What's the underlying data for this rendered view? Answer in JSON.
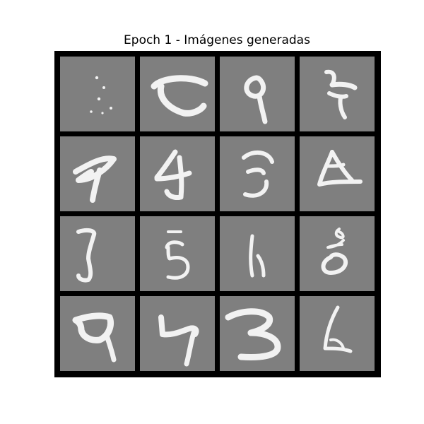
{
  "figure": {
    "title": "Epoch 1 - Imágenes generadas"
  },
  "grid": {
    "rows": 4,
    "cols": 4,
    "cells": [
      {
        "row": 0,
        "col": 0,
        "glyph": "noise-dots"
      },
      {
        "row": 0,
        "col": 1,
        "glyph": "c-stroke"
      },
      {
        "row": 0,
        "col": 2,
        "glyph": "nine-loop"
      },
      {
        "row": 0,
        "col": 3,
        "glyph": "z-stroke"
      },
      {
        "row": 1,
        "col": 0,
        "glyph": "nine-angular"
      },
      {
        "row": 1,
        "col": 1,
        "glyph": "four-stroke"
      },
      {
        "row": 1,
        "col": 2,
        "glyph": "three-stroke"
      },
      {
        "row": 1,
        "col": 3,
        "glyph": "triangle-loop"
      },
      {
        "row": 2,
        "col": 0,
        "glyph": "bracket-stroke"
      },
      {
        "row": 2,
        "col": 1,
        "glyph": "five-stroke"
      },
      {
        "row": 2,
        "col": 2,
        "glyph": "six-open"
      },
      {
        "row": 2,
        "col": 3,
        "glyph": "eight-loop"
      },
      {
        "row": 3,
        "col": 0,
        "glyph": "nine-box"
      },
      {
        "row": 3,
        "col": 1,
        "glyph": "nine-small"
      },
      {
        "row": 3,
        "col": 2,
        "glyph": "three-bold"
      },
      {
        "row": 3,
        "col": 3,
        "glyph": "six-faint"
      }
    ]
  },
  "colors": {
    "figure_background": "#ffffff",
    "grid_border": "#000000",
    "cell_background": "#7f7f7f",
    "stroke": "#f2f2f2"
  }
}
